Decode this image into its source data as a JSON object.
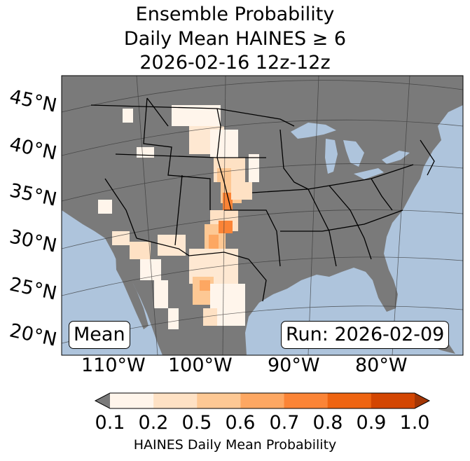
{
  "title": {
    "line1": "Ensemble Probability",
    "line2": "Daily Mean HAINES ≥ 6",
    "line3": "2026-02-16 12z-12z"
  },
  "map": {
    "lat_labels": [
      "45°N",
      "40°N",
      "35°N",
      "30°N",
      "25°N",
      "20°N"
    ],
    "lon_labels": [
      "110°W",
      "100°W",
      "90°W",
      "80°W"
    ],
    "stat_label": "Mean",
    "run_label": "Run: 2026-02-09",
    "colors": {
      "ocean": "#aec4dc",
      "land": "#7a7a7a",
      "border": "#000000",
      "grid": "#333333"
    }
  },
  "colorbar": {
    "ticks": [
      "0.1",
      "0.2",
      "0.5",
      "0.6",
      "0.7",
      "0.8",
      "0.9",
      "1.0"
    ],
    "label": "HAINES Daily Mean Probability",
    "colors": [
      "#fff5eb",
      "#fee1c4",
      "#fdc894",
      "#fda762",
      "#fb8436",
      "#ee6411",
      "#d34602"
    ],
    "under_color": "#7a7a7a",
    "over_color": "#a33605"
  }
}
